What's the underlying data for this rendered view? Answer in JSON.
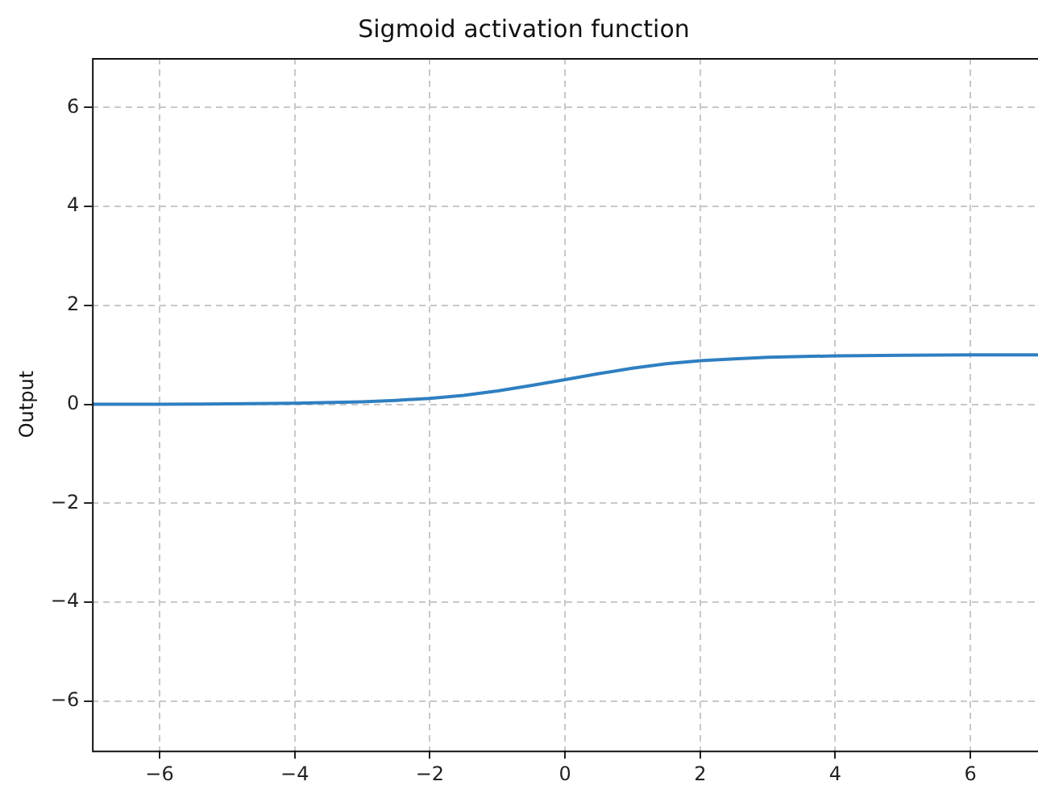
{
  "chart_data": {
    "type": "line",
    "title": "Sigmoid activation function",
    "ylabel": "Output",
    "x": [
      -7,
      -6,
      -5,
      -4,
      -3,
      -2.5,
      -2,
      -1.5,
      -1,
      -0.5,
      0,
      0.5,
      1,
      1.5,
      2,
      2.5,
      3,
      4,
      5,
      6,
      7
    ],
    "series": [
      {
        "color": "#2f7fc1",
        "values": [
          0.0,
          0.0,
          0.01,
          0.02,
          0.05,
          0.08,
          0.12,
          0.18,
          0.27,
          0.38,
          0.5,
          0.62,
          0.73,
          0.82,
          0.88,
          0.92,
          0.95,
          0.98,
          0.99,
          1.0,
          1.0
        ]
      }
    ],
    "xlim": [
      -7,
      7
    ],
    "xticks": [
      -6,
      -4,
      -2,
      0,
      2,
      4,
      6
    ],
    "ylim": [
      -7,
      7
    ],
    "yticks": [
      -6,
      -4,
      -2,
      0,
      2,
      4,
      6
    ],
    "grid": true,
    "legend": false,
    "marker": "none",
    "line_style": "solid"
  }
}
